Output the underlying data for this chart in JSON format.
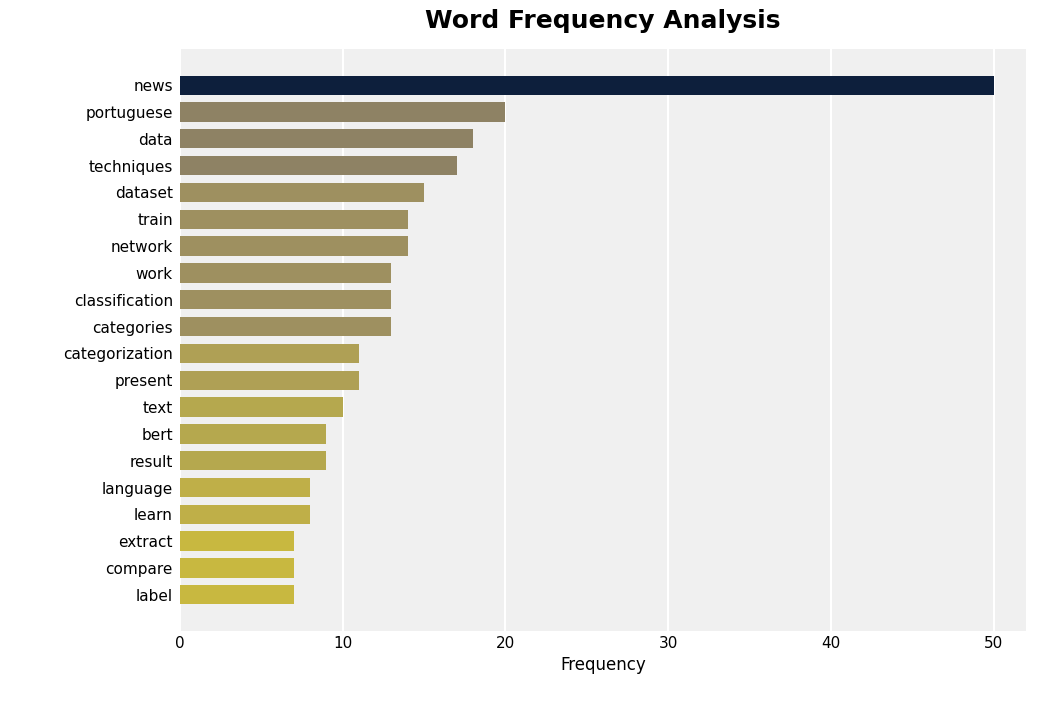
{
  "title": "Word Frequency Analysis",
  "xlabel": "Frequency",
  "categories": [
    "news",
    "portuguese",
    "data",
    "techniques",
    "dataset",
    "train",
    "network",
    "work",
    "classification",
    "categories",
    "categorization",
    "present",
    "text",
    "bert",
    "result",
    "language",
    "learn",
    "extract",
    "compare",
    "label"
  ],
  "values": [
    50,
    20,
    18,
    17,
    15,
    14,
    14,
    13,
    13,
    13,
    11,
    11,
    10,
    9,
    9,
    8,
    8,
    7,
    7,
    7
  ],
  "bar_colors": [
    "#0d1f3c",
    "#8e8264",
    "#8e8264",
    "#8e8264",
    "#9e9060",
    "#9e9060",
    "#9e9060",
    "#9e9060",
    "#9e9060",
    "#9e9060",
    "#afa055",
    "#afa055",
    "#b5a84e",
    "#b5a84e",
    "#b5a84e",
    "#bfaf48",
    "#bfaf48",
    "#c8b840",
    "#c8b840",
    "#c8b840"
  ],
  "plot_background_color": "#f0f0f0",
  "figure_background_color": "#ffffff",
  "xlim": [
    0,
    52
  ],
  "xticks": [
    0,
    10,
    20,
    30,
    40,
    50
  ],
  "title_fontsize": 18,
  "label_fontsize": 12,
  "tick_fontsize": 11,
  "bar_height": 0.72
}
